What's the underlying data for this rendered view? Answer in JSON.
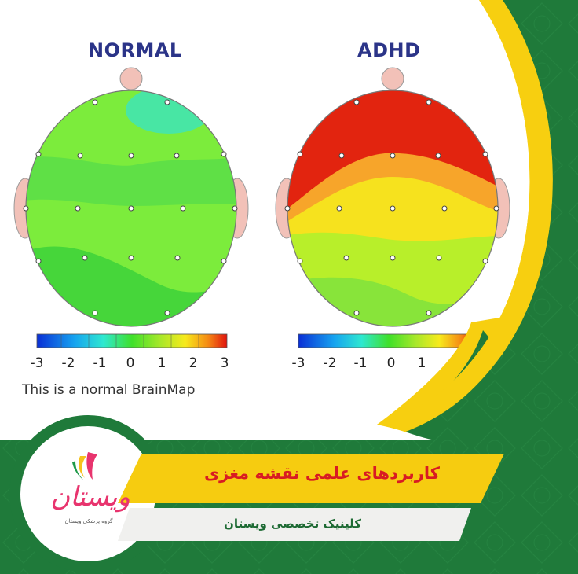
{
  "panels": {
    "normal": {
      "title": "NORMAL"
    },
    "adhd": {
      "title": "ADHD"
    }
  },
  "scale": {
    "normal_ticks": [
      "-3",
      "-2",
      "-1",
      "0",
      "1",
      "2",
      "3"
    ],
    "adhd_ticks": [
      "-3",
      "-2",
      "-1",
      "0",
      "1"
    ]
  },
  "caption": "This is a normal BrainMap",
  "banner": {
    "headline": "کاربردهای علمی نقشه مغزی",
    "subline": "کلینیک تخصصی ویستان"
  },
  "logo": {
    "wordmark": "ویستان",
    "tagline": "گروه پزشکی ویستان"
  },
  "colors": {
    "green_bg": "#1f7a3a",
    "yellow_arc": "#f7cf10",
    "headline_red": "#d81b23",
    "title_navy": "#2b3488",
    "logo_pink": "#e8346e"
  },
  "icons": [
    "brain-map-normal",
    "brain-map-adhd",
    "color-scale-bar",
    "vistan-logo"
  ]
}
